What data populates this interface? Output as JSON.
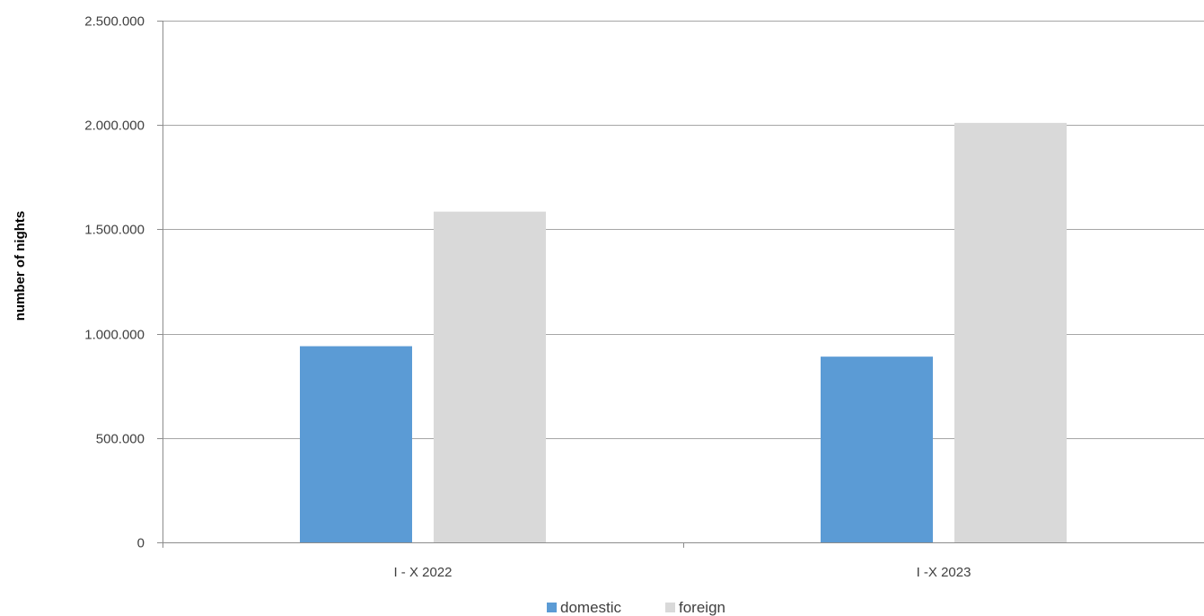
{
  "chart_data": {
    "type": "bar",
    "title": "",
    "xlabel": "",
    "ylabel": "number of nights",
    "categories": [
      "I - X 2022",
      "I -X 2023"
    ],
    "series": [
      {
        "name": "domestic",
        "values": [
          940000,
          890000
        ],
        "color": "#5b9bd5"
      },
      {
        "name": "foreign",
        "values": [
          1585000,
          2010000
        ],
        "color": "#d9d9d9"
      }
    ],
    "ylim": [
      0,
      2500000
    ],
    "yticks": [
      0,
      500000,
      1000000,
      1500000,
      2000000,
      2500000
    ],
    "ytick_labels": [
      "0",
      "500.000",
      "1.000.000",
      "1.500.000",
      "2.000.000",
      "2.500.000"
    ],
    "grid": true,
    "legend_position": "bottom"
  }
}
